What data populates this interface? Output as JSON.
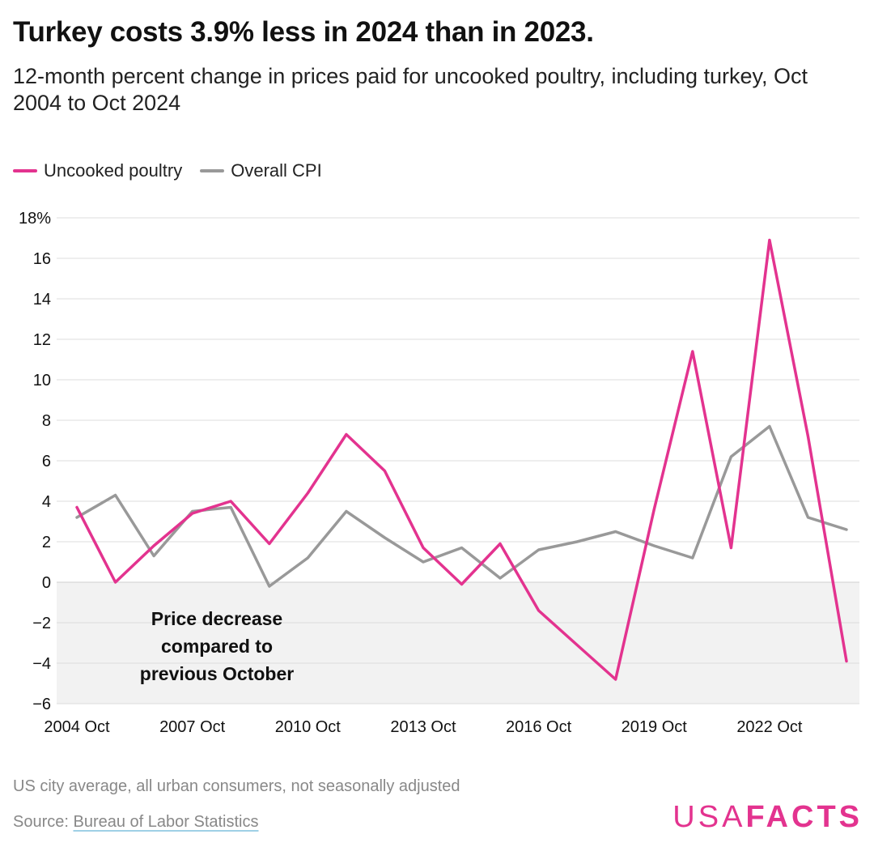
{
  "header": {
    "title": "Turkey costs 3.9% less in 2024 than in 2023.",
    "subtitle": "12-month percent change in prices paid for uncooked poultry, including turkey, Oct 2004 to Oct 2024"
  },
  "legend": {
    "items": [
      {
        "label": "Uncooked poultry",
        "color": "#e3338f"
      },
      {
        "label": "Overall CPI",
        "color": "#999999"
      }
    ]
  },
  "chart_data": {
    "type": "line",
    "x": [
      "2004 Oct",
      "2005 Oct",
      "2006 Oct",
      "2007 Oct",
      "2008 Oct",
      "2009 Oct",
      "2010 Oct",
      "2011 Oct",
      "2012 Oct",
      "2013 Oct",
      "2014 Oct",
      "2015 Oct",
      "2016 Oct",
      "2017 Oct",
      "2018 Oct",
      "2019 Oct",
      "2020 Oct",
      "2021 Oct",
      "2022 Oct",
      "2023 Oct",
      "2024 Oct"
    ],
    "x_tick_labels": [
      "2004 Oct",
      "2007 Oct",
      "2010 Oct",
      "2013 Oct",
      "2016 Oct",
      "2019 Oct",
      "2022 Oct"
    ],
    "series": [
      {
        "name": "Uncooked poultry",
        "color": "#e3338f",
        "values": [
          3.7,
          0.0,
          1.8,
          3.4,
          4.0,
          1.9,
          4.4,
          7.3,
          5.5,
          1.7,
          -0.1,
          1.9,
          -1.4,
          -3.1,
          -4.8,
          3.6,
          11.4,
          1.7,
          16.9,
          7.2,
          -3.9
        ]
      },
      {
        "name": "Overall CPI",
        "color": "#999999",
        "values": [
          3.2,
          4.3,
          1.3,
          3.5,
          3.7,
          -0.2,
          1.2,
          3.5,
          2.2,
          1.0,
          1.7,
          0.2,
          1.6,
          2.0,
          2.5,
          1.8,
          1.2,
          6.2,
          7.7,
          3.2,
          2.6
        ]
      }
    ],
    "ylim": [
      -6,
      18
    ],
    "y_ticks": [
      {
        "value": 18,
        "label": "18%"
      },
      {
        "value": 16,
        "label": "16"
      },
      {
        "value": 14,
        "label": "14"
      },
      {
        "value": 12,
        "label": "12"
      },
      {
        "value": 10,
        "label": "10"
      },
      {
        "value": 8,
        "label": "8"
      },
      {
        "value": 6,
        "label": "6"
      },
      {
        "value": 4,
        "label": "4"
      },
      {
        "value": 2,
        "label": "2"
      },
      {
        "value": 0,
        "label": "0"
      },
      {
        "value": -2,
        "label": "−2"
      },
      {
        "value": -4,
        "label": "−4"
      },
      {
        "value": -6,
        "label": "−6"
      }
    ],
    "annotation": [
      "Price decrease",
      "compared to",
      "previous October"
    ],
    "grid": true,
    "negative_region_shaded": true,
    "legend_position": "top-left"
  },
  "footer": {
    "note": "US city average, all urban consumers, not seasonally adjusted",
    "source_prefix": "Source: ",
    "source_link": "Bureau of Labor Statistics",
    "logo_light": "USA",
    "logo_bold": "FACTS"
  }
}
